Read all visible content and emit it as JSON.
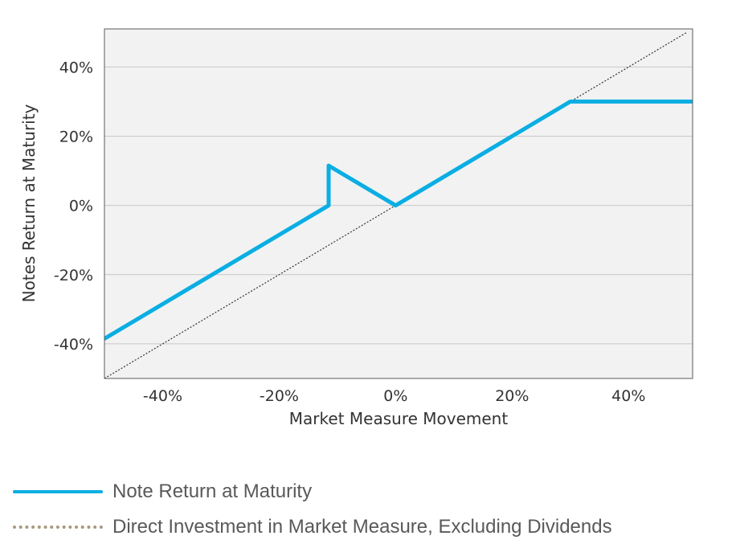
{
  "chart_data": {
    "type": "line",
    "xlabel": "Market Measure Movement",
    "ylabel": "Notes Return at Maturity",
    "xlim": [
      -50,
      51
    ],
    "ylim": [
      -50,
      51
    ],
    "x_ticks": [
      -40,
      -20,
      0,
      20,
      40
    ],
    "y_ticks": [
      40,
      20,
      0,
      -20,
      -40
    ],
    "x_tick_labels": [
      "-40%",
      "-20%",
      "0%",
      "20%",
      "40%"
    ],
    "y_tick_labels": [
      "40%",
      "20%",
      "0%",
      "-20%",
      "-40%"
    ],
    "grid": "horizontal",
    "plot_background": "#f2f2f2",
    "legend_position": "bottom",
    "series": [
      {
        "name": "Note Return at Maturity",
        "style": "solid",
        "color": "#0aaee3",
        "x": [
          -50,
          -11.5,
          -11.5,
          0,
          30,
          51
        ],
        "y": [
          -38.5,
          0,
          11.5,
          0,
          30,
          30
        ]
      },
      {
        "name": "Direct Investment in Market Measure, Excluding Dividends",
        "style": "dotted",
        "color": "#333333",
        "legend_color": "#a8997e",
        "x": [
          -50,
          50
        ],
        "y": [
          -50,
          50
        ]
      }
    ]
  }
}
